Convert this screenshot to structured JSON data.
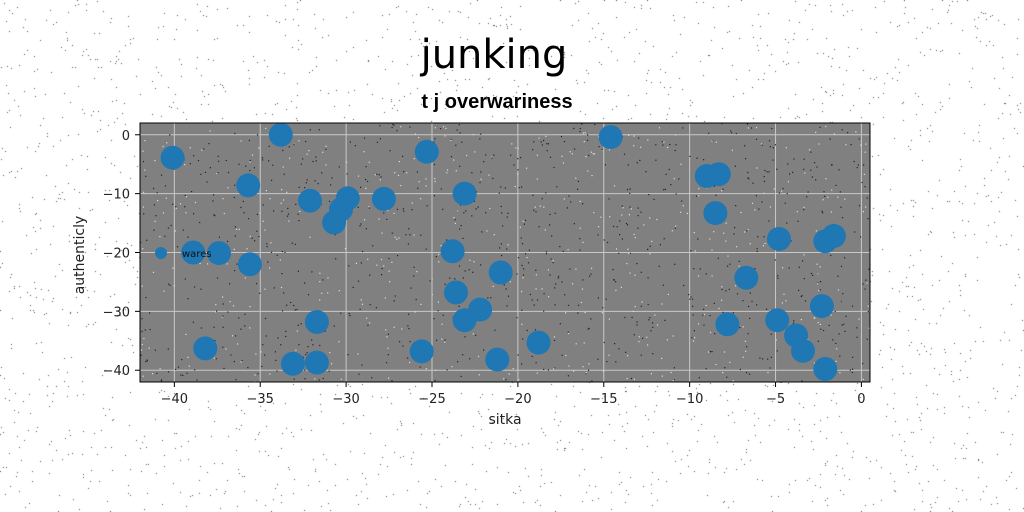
{
  "chart_data": {
    "type": "scatter",
    "title": "junking",
    "subtitle": "t j overwariness",
    "xlabel": "sitka",
    "ylabel": "authenticly",
    "xlim": [
      -42,
      0.5
    ],
    "ylim": [
      -42,
      2
    ],
    "xticks": [
      -40,
      -35,
      -30,
      -25,
      -20,
      -15,
      -10,
      -5,
      0
    ],
    "yticks": [
      0,
      -10,
      -20,
      -30,
      -40
    ],
    "grid": true,
    "legend_position": "center-left",
    "colors": {
      "marker": "#1f77b4",
      "plot_bg": "#808080",
      "grid": "#c8c8c8"
    },
    "series": [
      {
        "name": "wares",
        "x": [
          -33.8,
          -40.1,
          -25.3,
          -14.6,
          -35.7,
          -32.1,
          -29.9,
          -30.3,
          -30.7,
          -27.8,
          -23.1,
          -9.0,
          -8.3,
          -8.5,
          -4.8,
          -2.1,
          -1.6,
          -38.9,
          -37.4,
          -35.6,
          -23.8,
          -21.0,
          -23.6,
          -22.2,
          -23.1,
          -31.7,
          -38.2,
          -25.6,
          -21.2,
          -18.8,
          -33.1,
          -31.7,
          -6.7,
          -4.9,
          -7.8,
          -2.3,
          -3.8,
          -3.4,
          -2.1
        ],
        "y": [
          0.0,
          -3.9,
          -2.9,
          -0.4,
          -8.6,
          -11.2,
          -10.8,
          -12.7,
          -14.9,
          -10.9,
          -10.0,
          -7.0,
          -6.7,
          -13.3,
          -17.7,
          -18.1,
          -17.2,
          -20.0,
          -20.1,
          -22.0,
          -19.8,
          -23.4,
          -26.8,
          -29.7,
          -31.5,
          -31.8,
          -36.3,
          -36.8,
          -38.2,
          -35.3,
          -38.9,
          -38.7,
          -24.3,
          -31.5,
          -32.2,
          -29.1,
          -34.1,
          -36.7,
          -39.8
        ]
      }
    ]
  }
}
